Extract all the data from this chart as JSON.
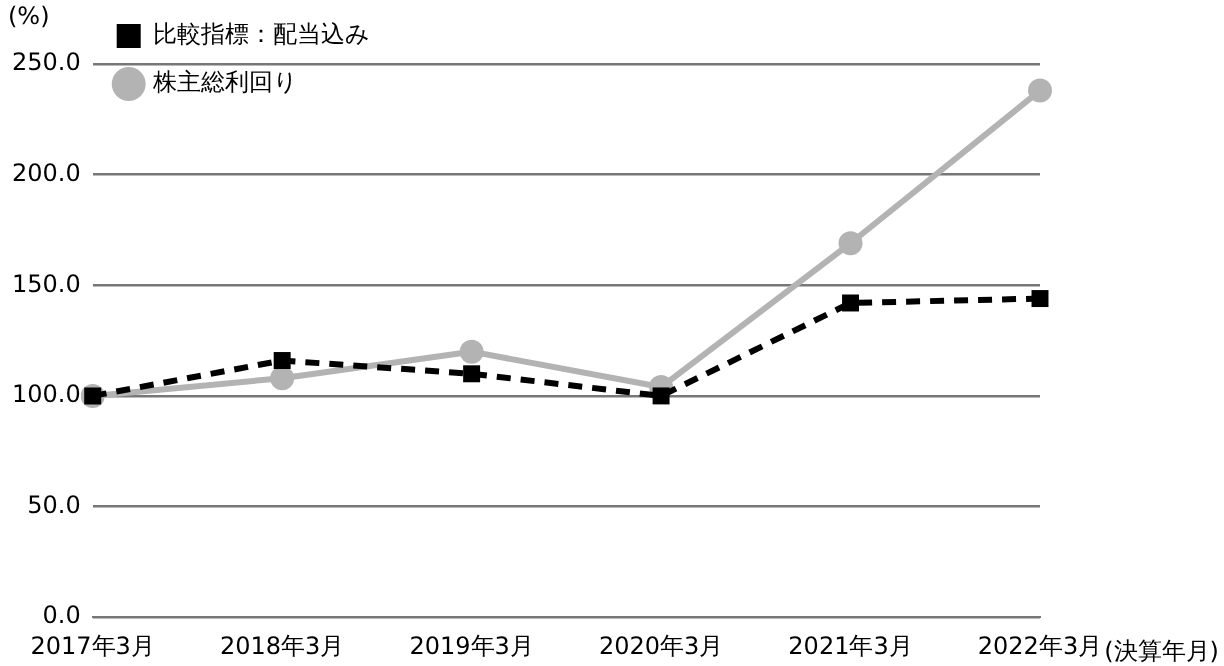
{
  "chart_data": {
    "type": "line",
    "ylabel": "(%)",
    "xlabel": "(決算年月)",
    "categories": [
      "2017年3月",
      "2018年3月",
      "2019年3月",
      "2020年3月",
      "2021年3月",
      "2022年3月"
    ],
    "series": [
      {
        "name": "株主総利回り",
        "color": "#b3b3b3",
        "marker": "circle",
        "line_style": "solid",
        "values": [
          100,
          108,
          120,
          104,
          169,
          238
        ]
      },
      {
        "name": "比較指標：配当込み",
        "color": "#000000",
        "marker": "square",
        "line_style": "dashed",
        "values": [
          100,
          116,
          110,
          100,
          142,
          144
        ]
      }
    ],
    "ylim": [
      0,
      250
    ],
    "yticks": [
      {
        "value": 0,
        "label": "0.0"
      },
      {
        "value": 50,
        "label": "50.0"
      },
      {
        "value": 100,
        "label": "100.0"
      },
      {
        "value": 150,
        "label": "150.0"
      },
      {
        "value": 200,
        "label": "200.0"
      },
      {
        "value": 250,
        "label": "250.0"
      }
    ],
    "grid": "y",
    "legend": "top left"
  }
}
